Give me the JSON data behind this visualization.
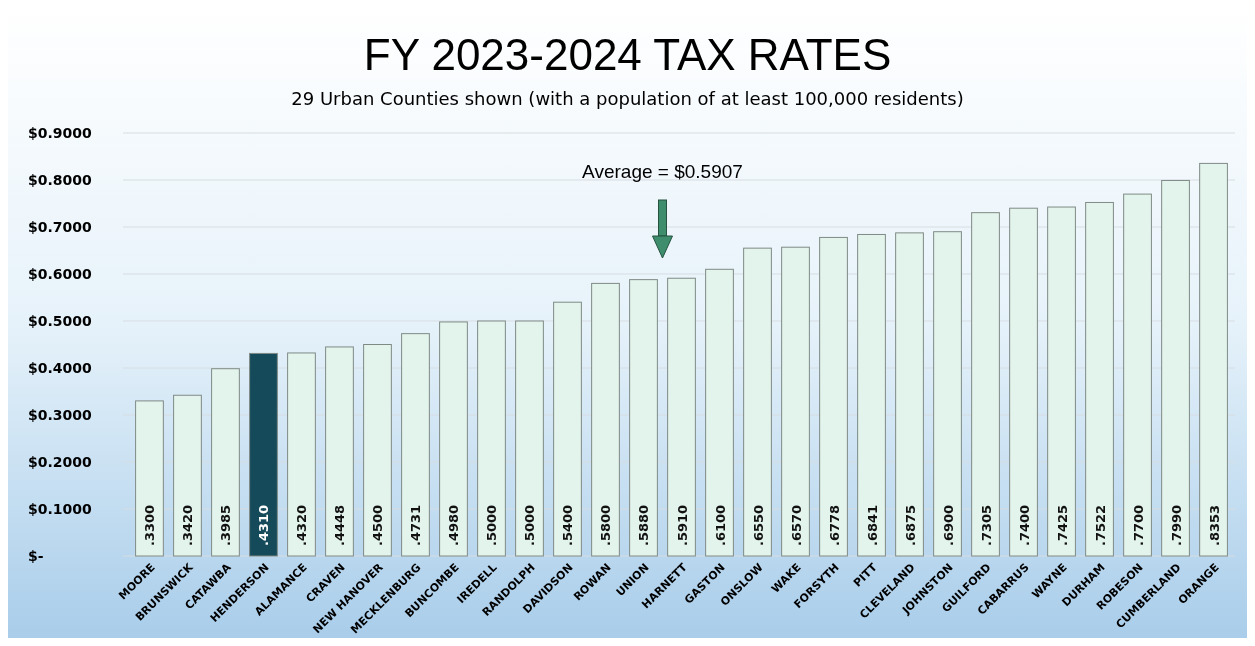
{
  "chart_data": {
    "type": "bar",
    "title": "FY 2023-2024 TAX RATES",
    "subtitle": "29 Urban Counties shown (with a population of at least 100,000 residents)",
    "categories": [
      "MOORE",
      "BRUNSWICK",
      "CATAWBA",
      "HENDERSON",
      "ALAMANCE",
      "CRAVEN",
      "NEW HANOVER",
      "MECKLENBURG",
      "BUNCOMBE",
      "IREDELL",
      "RANDOLPH",
      "DAVIDSON",
      "ROWAN",
      "UNION",
      "HARNETT",
      "GASTON",
      "ONSLOW",
      "WAKE",
      "FORSYTH",
      "PITT",
      "CLEVELAND",
      "JOHNSTON",
      "GUILFORD",
      "CABARRUS",
      "WAYNE",
      "DURHAM",
      "ROBESON",
      "CUMBERLAND",
      "ORANGE"
    ],
    "values": [
      0.33,
      0.342,
      0.3985,
      0.431,
      0.432,
      0.4448,
      0.45,
      0.4731,
      0.498,
      0.5,
      0.5,
      0.54,
      0.58,
      0.588,
      0.591,
      0.61,
      0.655,
      0.657,
      0.6778,
      0.6841,
      0.6875,
      0.69,
      0.7305,
      0.74,
      0.7425,
      0.7522,
      0.77,
      0.799,
      0.8353
    ],
    "value_labels": [
      ".3300",
      ".3420",
      ".3985",
      ".4310",
      ".4320",
      ".4448",
      ".4500",
      ".4731",
      ".4980",
      ".5000",
      ".5000",
      ".5400",
      ".5800",
      ".5880",
      ".5910",
      ".6100",
      ".6550",
      ".6570",
      ".6778",
      ".6841",
      ".6875",
      ".6900",
      ".7305",
      ".7400",
      ".7425",
      ".7522",
      ".7700",
      ".7990",
      ".8353"
    ],
    "colors": [
      "#e3f4ec",
      "#e3f4ec",
      "#e3f4ec",
      "#154a5a",
      "#e3f4ec",
      "#e3f4ec",
      "#e3f4ec",
      "#e3f4ec",
      "#e3f4ec",
      "#e3f4ec",
      "#e3f4ec",
      "#e3f4ec",
      "#e3f4ec",
      "#e3f4ec",
      "#e3f4ec",
      "#e3f4ec",
      "#e3f4ec",
      "#e3f4ec",
      "#e3f4ec",
      "#e3f4ec",
      "#e3f4ec",
      "#e3f4ec",
      "#e3f4ec",
      "#e3f4ec",
      "#e3f4ec",
      "#e3f4ec",
      "#e3f4ec",
      "#e3f4ec",
      "#e3f4ec"
    ],
    "ylim": [
      0,
      0.9
    ],
    "yticks": [
      {
        "value": 0,
        "label": "$-"
      },
      {
        "value": 0.1,
        "label": "$0.1000"
      },
      {
        "value": 0.2,
        "label": "$0.2000"
      },
      {
        "value": 0.3,
        "label": "$0.3000"
      },
      {
        "value": 0.4,
        "label": "$0.4000"
      },
      {
        "value": 0.5,
        "label": "$0.5000"
      },
      {
        "value": 0.6,
        "label": "$0.6000"
      },
      {
        "value": 0.7,
        "label": "$0.7000"
      },
      {
        "value": 0.8,
        "label": "$0.8000"
      },
      {
        "value": 0.9,
        "label": "$0.9000"
      }
    ],
    "grid": "y",
    "annotations": [
      "Average = $0.5907"
    ]
  }
}
